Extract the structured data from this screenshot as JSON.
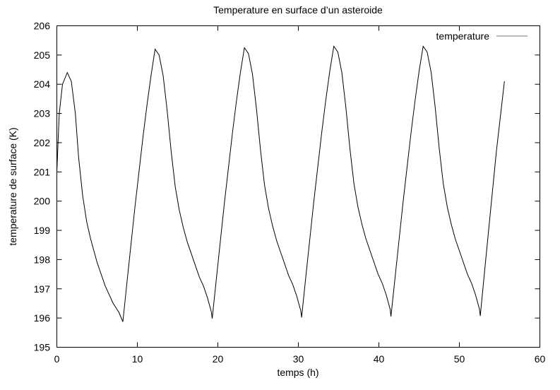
{
  "chart_data": {
    "type": "line",
    "title": "Temperature en surface d’un asteroide",
    "xlabel": "temps (h)",
    "ylabel": "temperature de surface (K)",
    "xlim": [
      0,
      60
    ],
    "ylim": [
      195,
      206
    ],
    "xticks": [
      0,
      10,
      20,
      30,
      40,
      50,
      60
    ],
    "yticks": [
      195,
      196,
      197,
      198,
      199,
      200,
      201,
      202,
      203,
      204,
      205,
      206
    ],
    "grid": false,
    "legend_position": "top-right",
    "series": [
      {
        "name": "temperature",
        "color": "#000000",
        "legend_color": "#a0a0a0",
        "x": [
          0,
          0.3,
          0.7,
          1.3,
          1.8,
          2.3,
          2.7,
          3.2,
          3.7,
          4.2,
          5,
          6,
          7,
          7.7,
          8.2,
          8.7,
          9.2,
          9.7,
          10.2,
          10.7,
          11.2,
          11.7,
          12.2,
          12.7,
          13.2,
          13.7,
          14.2,
          14.7,
          15.2,
          15.7,
          16.2,
          16.7,
          17.2,
          17.7,
          18.2,
          18.7,
          19.2,
          19.3,
          19.8,
          20.3,
          20.8,
          21.3,
          21.8,
          22.3,
          22.8,
          23.3,
          23.8,
          24.3,
          24.8,
          25.3,
          25.8,
          26.3,
          26.8,
          27.3,
          27.8,
          28.3,
          28.8,
          29.3,
          29.8,
          30.3,
          30.4,
          30.9,
          31.4,
          31.9,
          32.4,
          32.9,
          33.4,
          33.9,
          34.4,
          34.9,
          35.4,
          35.9,
          36.4,
          36.9,
          37.4,
          37.9,
          38.4,
          38.9,
          39.4,
          39.9,
          40.4,
          40.9,
          41.4,
          41.5,
          42.0,
          42.5,
          43.0,
          43.5,
          44.0,
          44.5,
          45.0,
          45.5,
          46.0,
          46.5,
          47.0,
          47.5,
          48.0,
          48.5,
          49.0,
          49.5,
          50.0,
          50.5,
          51.0,
          51.5,
          52.0,
          52.5,
          52.6,
          53.1,
          53.6,
          54.1,
          54.6,
          55.1,
          55.6
        ],
        "y": [
          201.0,
          203.0,
          204.0,
          204.4,
          204.1,
          203.0,
          201.5,
          200.2,
          199.3,
          198.7,
          197.9,
          197.1,
          196.5,
          196.2,
          195.87,
          197.2,
          198.5,
          199.8,
          201.0,
          202.2,
          203.3,
          204.3,
          205.2,
          205.0,
          204.3,
          203.1,
          201.7,
          200.5,
          199.7,
          199.1,
          198.6,
          198.2,
          197.8,
          197.4,
          197.1,
          196.7,
          196.2,
          195.98,
          197.3,
          198.6,
          199.9,
          201.1,
          202.3,
          203.4,
          204.4,
          205.25,
          205.05,
          204.35,
          203.15,
          201.75,
          200.55,
          199.75,
          199.15,
          198.65,
          198.25,
          197.85,
          197.45,
          197.15,
          196.75,
          196.25,
          196.02,
          197.35,
          198.65,
          199.95,
          201.15,
          202.35,
          203.45,
          204.45,
          205.3,
          205.1,
          204.4,
          203.2,
          201.8,
          200.6,
          199.8,
          199.2,
          198.7,
          198.3,
          197.9,
          197.5,
          197.2,
          196.8,
          196.3,
          196.05,
          197.35,
          198.65,
          199.95,
          201.15,
          202.35,
          203.45,
          204.45,
          205.3,
          205.1,
          204.4,
          203.2,
          201.8,
          200.6,
          199.8,
          199.2,
          198.7,
          198.3,
          197.9,
          197.5,
          197.2,
          196.8,
          196.3,
          196.07,
          197.5,
          198.9,
          200.3,
          201.7,
          202.9,
          204.1
        ]
      }
    ]
  }
}
